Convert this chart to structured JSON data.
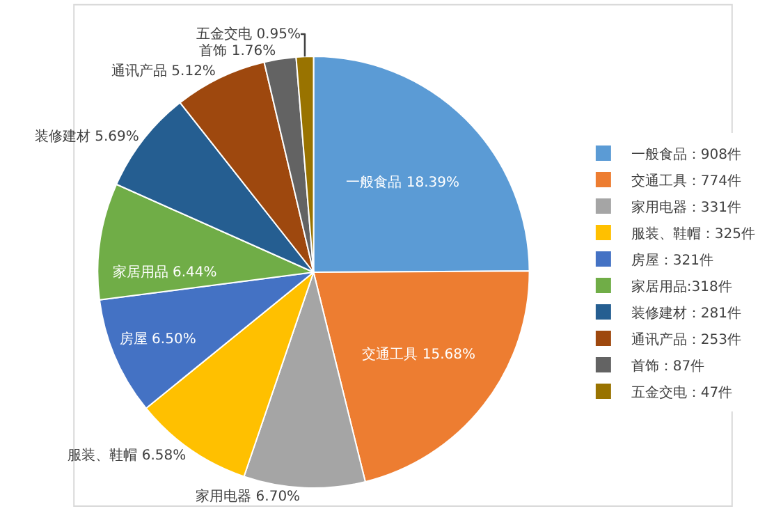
{
  "chart_data": {
    "type": "pie",
    "categories": [
      "一般食品：908件",
      "交通工具：774件",
      "家用电器：331件",
      "服装、鞋帽：325件",
      "房屋：321件",
      "家居用品:318件",
      "装修建材：281件",
      "通讯产品：253件",
      "首饰：87件",
      "五金交电：47件"
    ],
    "values": [
      908,
      774,
      331,
      325,
      321,
      318,
      281,
      253,
      87,
      47
    ],
    "value_labels": [
      "一般食品 18.39%",
      "交通工具 15.68%",
      "家用电器 6.70%",
      "服装、鞋帽 6.58%",
      "房屋 6.50%",
      "家居用品 6.44%",
      "装修建材 5.69%",
      "通讯产品 5.12%",
      "首饰 1.76%",
      "五金交电 0.95%"
    ],
    "colors": [
      "#5b9bd5",
      "#ed7d31",
      "#a5a5a5",
      "#ffc000",
      "#4472c4",
      "#70ad47",
      "#255e91",
      "#9e480e",
      "#636363",
      "#997300"
    ],
    "legend": "right"
  }
}
